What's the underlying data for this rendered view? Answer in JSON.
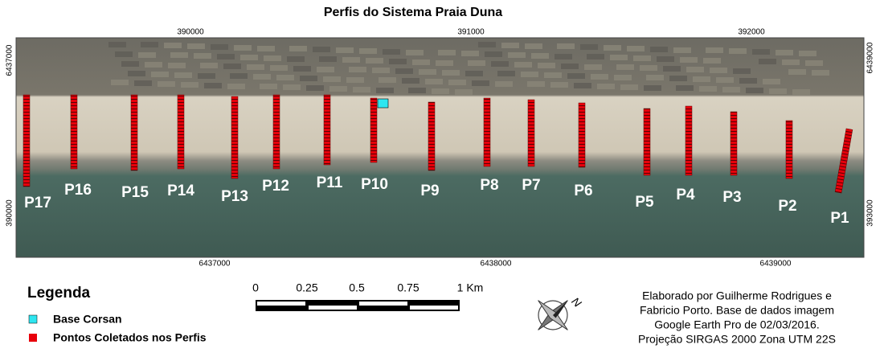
{
  "title": "Perfis do Sistema Praia Duna",
  "coordinates": {
    "top": [
      "390000",
      "391000",
      "392000"
    ],
    "bottom": [
      "6437000",
      "6438000",
      "6439000"
    ],
    "left": [
      "6437000",
      "390000"
    ],
    "right": [
      "6439000",
      "393000"
    ]
  },
  "profiles": [
    "P1",
    "P2",
    "P3",
    "P4",
    "P5",
    "P6",
    "P7",
    "P8",
    "P9",
    "P10",
    "P11",
    "P12",
    "P13",
    "P14",
    "P15",
    "P16",
    "P17"
  ],
  "legend": {
    "title": "Legenda",
    "items": [
      "Base Corsan",
      "Pontos Coletados nos Perfis"
    ]
  },
  "scale_bar": {
    "labels": [
      "0",
      "0.25",
      "0.5",
      "0.75",
      "1 Km"
    ]
  },
  "north": "N",
  "credits": [
    "Elaborado por Guilherme Rodrigues e",
    "Fabricio Porto. Base de dados imagem",
    "Google Earth Pro de 02/03/2016.",
    "Projeção SIRGAS 2000 Zona UTM 22S"
  ]
}
